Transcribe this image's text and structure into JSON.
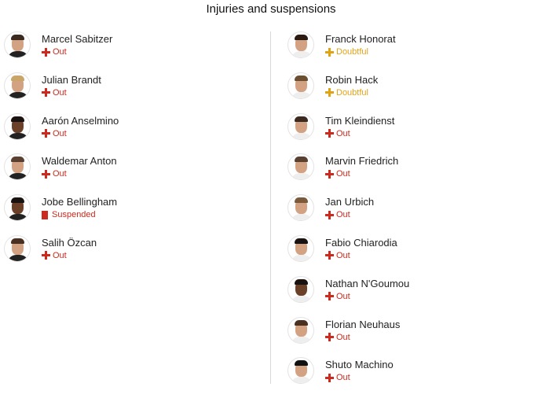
{
  "title": "Injuries and suspensions",
  "colors": {
    "out": "#cc2a1e",
    "doubtful": "#e2a312",
    "suspended": "#cc2a1e",
    "home_shirt": "#222222",
    "away_shirt": "#eeeeee"
  },
  "left": [
    {
      "name": "Marcel Sabitzer",
      "status": "Out",
      "icon": "cross-icon",
      "hair": "#3a2a20"
    },
    {
      "name": "Julian Brandt",
      "status": "Out",
      "icon": "cross-icon",
      "hair": "#c9a56a"
    },
    {
      "name": "Aarón Anselmino",
      "status": "Out",
      "icon": "cross-icon",
      "hair": "#1a1210"
    },
    {
      "name": "Waldemar Anton",
      "status": "Out",
      "icon": "cross-icon",
      "hair": "#5a4030"
    },
    {
      "name": "Jobe Bellingham",
      "status": "Suspended",
      "icon": "red-card-icon",
      "hair": "#1a1210"
    },
    {
      "name": "Salih Özcan",
      "status": "Out",
      "icon": "cross-icon",
      "hair": "#4a3020"
    }
  ],
  "right": [
    {
      "name": "Franck Honorat",
      "status": "Doubtful",
      "icon": "cross-icon",
      "hair": "#2a1a12"
    },
    {
      "name": "Robin Hack",
      "status": "Doubtful",
      "icon": "cross-icon",
      "hair": "#6a5030"
    },
    {
      "name": "Tim Kleindienst",
      "status": "Out",
      "icon": "cross-icon",
      "hair": "#3a2a20"
    },
    {
      "name": "Marvin Friedrich",
      "status": "Out",
      "icon": "cross-icon",
      "hair": "#5a4030"
    },
    {
      "name": "Jan Urbich",
      "status": "Out",
      "icon": "cross-icon",
      "hair": "#7a5a3a"
    },
    {
      "name": "Fabio Chiarodia",
      "status": "Out",
      "icon": "cross-icon",
      "hair": "#1a1210"
    },
    {
      "name": "Nathan N'Goumou",
      "status": "Out",
      "icon": "cross-icon",
      "hair": "#1a1210"
    },
    {
      "name": "Florian Neuhaus",
      "status": "Out",
      "icon": "cross-icon",
      "hair": "#4a3020"
    },
    {
      "name": "Shuto Machino",
      "status": "Out",
      "icon": "cross-icon",
      "hair": "#111111"
    }
  ]
}
